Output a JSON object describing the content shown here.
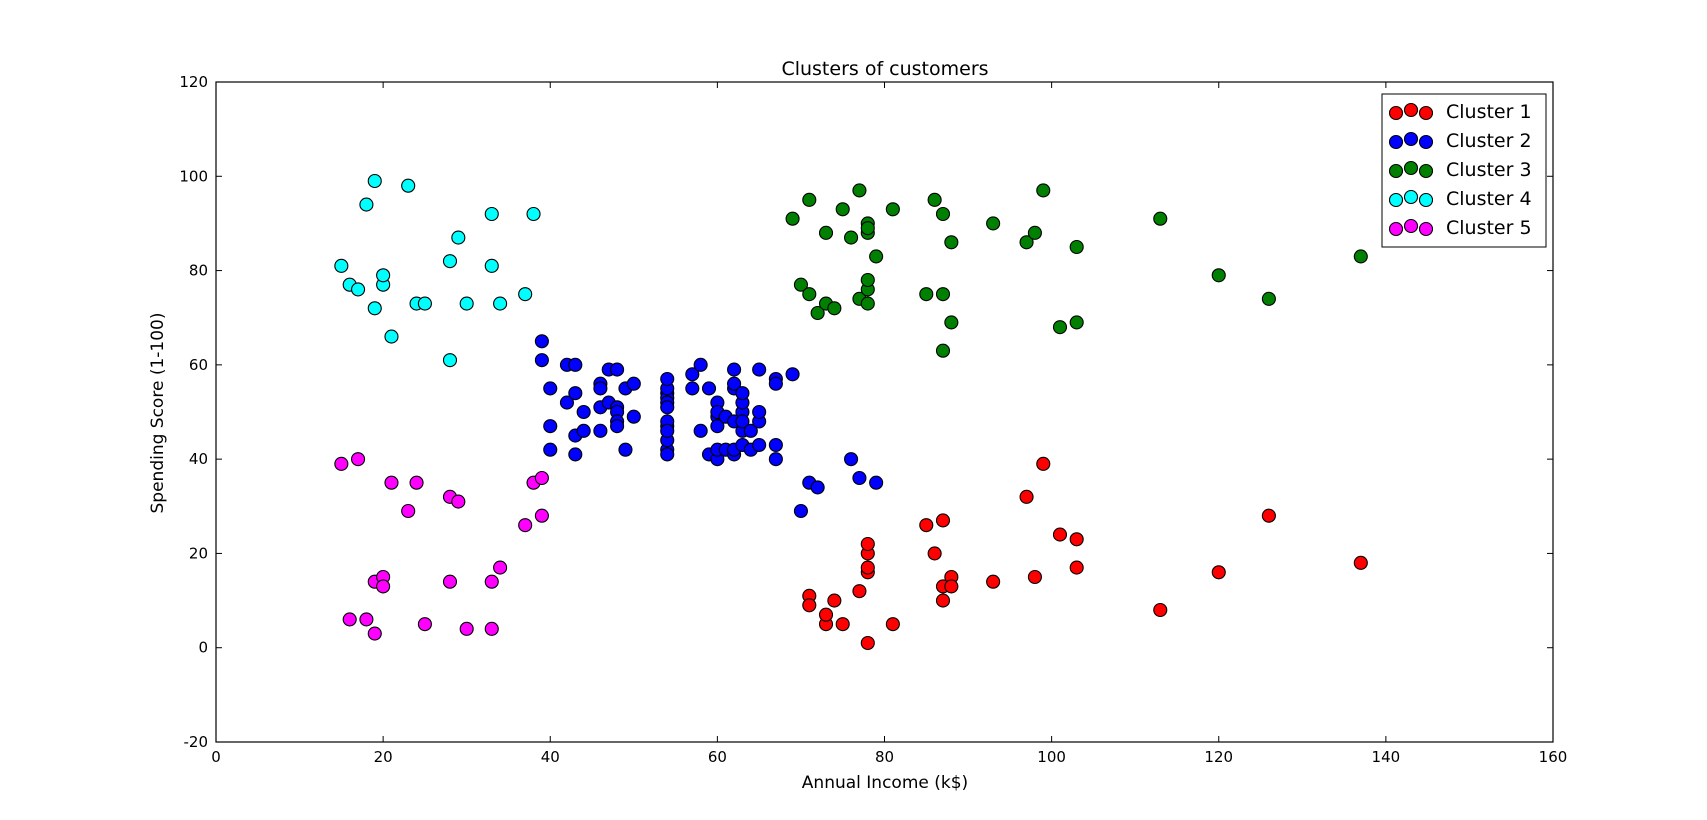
{
  "chart_data": {
    "type": "scatter",
    "title": "Clusters of customers",
    "xlabel": "Annual Income (k$)",
    "ylabel": "Spending Score (1-100)",
    "xlim": [
      0,
      160
    ],
    "ylim": [
      -20,
      120
    ],
    "x_ticks": [
      0,
      20,
      40,
      60,
      80,
      100,
      120,
      140,
      160
    ],
    "y_ticks": [
      -20,
      0,
      20,
      40,
      60,
      80,
      100,
      120
    ],
    "grid": false,
    "legend_position": "top-right",
    "series": [
      {
        "name": "Cluster 1",
        "color": "#ff0000",
        "points": [
          [
            71,
            11
          ],
          [
            71,
            9
          ],
          [
            73,
            5
          ],
          [
            73,
            7
          ],
          [
            74,
            10
          ],
          [
            75,
            5
          ],
          [
            77,
            12
          ],
          [
            78,
            1
          ],
          [
            78,
            16
          ],
          [
            78,
            17
          ],
          [
            78,
            20
          ],
          [
            78,
            22
          ],
          [
            81,
            5
          ],
          [
            85,
            26
          ],
          [
            86,
            20
          ],
          [
            87,
            27
          ],
          [
            87,
            10
          ],
          [
            87,
            13
          ],
          [
            88,
            15
          ],
          [
            88,
            13
          ],
          [
            93,
            14
          ],
          [
            97,
            32
          ],
          [
            98,
            15
          ],
          [
            99,
            39
          ],
          [
            101,
            24
          ],
          [
            103,
            17
          ],
          [
            103,
            23
          ],
          [
            113,
            8
          ],
          [
            120,
            16
          ],
          [
            126,
            28
          ],
          [
            137,
            18
          ]
        ]
      },
      {
        "name": "Cluster 2",
        "color": "#0000ff",
        "points": [
          [
            39,
            65
          ],
          [
            39,
            61
          ],
          [
            40,
            55
          ],
          [
            40,
            47
          ],
          [
            40,
            42
          ],
          [
            42,
            52
          ],
          [
            42,
            60
          ],
          [
            43,
            60
          ],
          [
            43,
            54
          ],
          [
            43,
            45
          ],
          [
            43,
            41
          ],
          [
            44,
            50
          ],
          [
            44,
            46
          ],
          [
            46,
            51
          ],
          [
            46,
            46
          ],
          [
            46,
            56
          ],
          [
            46,
            55
          ],
          [
            47,
            52
          ],
          [
            47,
            59
          ],
          [
            48,
            51
          ],
          [
            48,
            59
          ],
          [
            48,
            50
          ],
          [
            48,
            48
          ],
          [
            48,
            47
          ],
          [
            49,
            55
          ],
          [
            49,
            42
          ],
          [
            50,
            49
          ],
          [
            50,
            56
          ],
          [
            54,
            47
          ],
          [
            54,
            54
          ],
          [
            54,
            53
          ],
          [
            54,
            48
          ],
          [
            54,
            52
          ],
          [
            54,
            42
          ],
          [
            54,
            51
          ],
          [
            54,
            55
          ],
          [
            54,
            41
          ],
          [
            54,
            44
          ],
          [
            54,
            57
          ],
          [
            54,
            46
          ],
          [
            57,
            58
          ],
          [
            57,
            55
          ],
          [
            58,
            60
          ],
          [
            58,
            46
          ],
          [
            59,
            55
          ],
          [
            59,
            41
          ],
          [
            60,
            49
          ],
          [
            60,
            40
          ],
          [
            60,
            42
          ],
          [
            60,
            52
          ],
          [
            60,
            47
          ],
          [
            60,
            50
          ],
          [
            61,
            42
          ],
          [
            61,
            49
          ],
          [
            62,
            41
          ],
          [
            62,
            48
          ],
          [
            62,
            59
          ],
          [
            62,
            55
          ],
          [
            62,
            56
          ],
          [
            62,
            42
          ],
          [
            63,
            50
          ],
          [
            63,
            46
          ],
          [
            63,
            43
          ],
          [
            63,
            48
          ],
          [
            63,
            52
          ],
          [
            63,
            54
          ],
          [
            64,
            42
          ],
          [
            64,
            46
          ],
          [
            65,
            48
          ],
          [
            65,
            50
          ],
          [
            65,
            43
          ],
          [
            65,
            59
          ],
          [
            67,
            43
          ],
          [
            67,
            57
          ],
          [
            67,
            56
          ],
          [
            67,
            40
          ],
          [
            69,
            58
          ],
          [
            70,
            29
          ],
          [
            71,
            35
          ],
          [
            72,
            34
          ],
          [
            76,
            40
          ],
          [
            77,
            36
          ],
          [
            79,
            35
          ]
        ]
      },
      {
        "name": "Cluster 3",
        "color": "#008000",
        "points": [
          [
            69,
            91
          ],
          [
            70,
            77
          ],
          [
            71,
            95
          ],
          [
            71,
            75
          ],
          [
            72,
            71
          ],
          [
            73,
            88
          ],
          [
            73,
            73
          ],
          [
            74,
            72
          ],
          [
            75,
            93
          ],
          [
            76,
            87
          ],
          [
            77,
            97
          ],
          [
            77,
            74
          ],
          [
            78,
            90
          ],
          [
            78,
            88
          ],
          [
            78,
            76
          ],
          [
            78,
            89
          ],
          [
            78,
            78
          ],
          [
            78,
            73
          ],
          [
            79,
            83
          ],
          [
            81,
            93
          ],
          [
            85,
            75
          ],
          [
            86,
            95
          ],
          [
            87,
            63
          ],
          [
            87,
            75
          ],
          [
            87,
            92
          ],
          [
            88,
            86
          ],
          [
            88,
            69
          ],
          [
            93,
            90
          ],
          [
            97,
            86
          ],
          [
            98,
            88
          ],
          [
            99,
            97
          ],
          [
            101,
            68
          ],
          [
            103,
            85
          ],
          [
            103,
            69
          ],
          [
            113,
            91
          ],
          [
            120,
            79
          ],
          [
            126,
            74
          ],
          [
            137,
            83
          ]
        ]
      },
      {
        "name": "Cluster 4",
        "color": "#00ffff",
        "points": [
          [
            15,
            81
          ],
          [
            16,
            77
          ],
          [
            17,
            76
          ],
          [
            18,
            94
          ],
          [
            19,
            72
          ],
          [
            19,
            99
          ],
          [
            20,
            77
          ],
          [
            20,
            79
          ],
          [
            21,
            66
          ],
          [
            23,
            98
          ],
          [
            24,
            73
          ],
          [
            25,
            73
          ],
          [
            28,
            82
          ],
          [
            28,
            61
          ],
          [
            29,
            87
          ],
          [
            30,
            73
          ],
          [
            33,
            92
          ],
          [
            33,
            81
          ],
          [
            34,
            73
          ],
          [
            37,
            75
          ],
          [
            38,
            92
          ]
        ]
      },
      {
        "name": "Cluster 5",
        "color": "#ff00ff",
        "points": [
          [
            15,
            39
          ],
          [
            16,
            6
          ],
          [
            17,
            40
          ],
          [
            18,
            6
          ],
          [
            19,
            3
          ],
          [
            19,
            14
          ],
          [
            20,
            15
          ],
          [
            20,
            13
          ],
          [
            21,
            35
          ],
          [
            23,
            29
          ],
          [
            24,
            35
          ],
          [
            25,
            5
          ],
          [
            28,
            14
          ],
          [
            28,
            32
          ],
          [
            29,
            31
          ],
          [
            30,
            4
          ],
          [
            33,
            4
          ],
          [
            33,
            14
          ],
          [
            34,
            17
          ],
          [
            37,
            26
          ],
          [
            38,
            35
          ],
          [
            39,
            36
          ],
          [
            39,
            28
          ]
        ]
      }
    ]
  }
}
